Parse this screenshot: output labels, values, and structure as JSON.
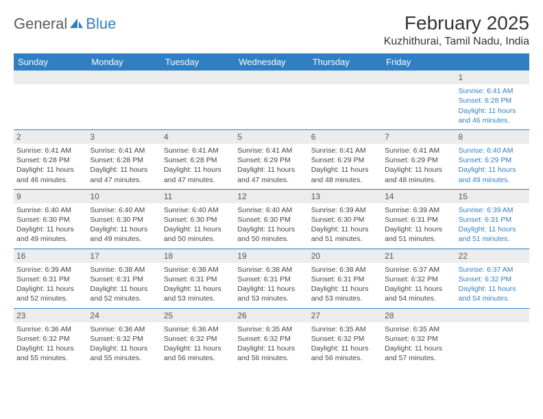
{
  "logo": {
    "text1": "General",
    "text2": "Blue"
  },
  "title": "February 2025",
  "location": "Kuzhithurai, Tamil Nadu, India",
  "colors": {
    "header_bg": "#2f7fc2",
    "header_text": "#ffffff",
    "daynum_bg": "#ececec",
    "border": "#2f7fc2",
    "body_text": "#444444",
    "saturday_text": "#2f7fc2",
    "background": "#ffffff"
  },
  "typography": {
    "title_fontsize": 28,
    "location_fontsize": 16,
    "dayheader_fontsize": 13,
    "cell_fontsize": 10.5,
    "daynum_fontsize": 12
  },
  "day_headers": [
    "Sunday",
    "Monday",
    "Tuesday",
    "Wednesday",
    "Thursday",
    "Friday",
    "Saturday"
  ],
  "weeks": [
    [
      {
        "n": "",
        "lines": []
      },
      {
        "n": "",
        "lines": []
      },
      {
        "n": "",
        "lines": []
      },
      {
        "n": "",
        "lines": []
      },
      {
        "n": "",
        "lines": []
      },
      {
        "n": "",
        "lines": []
      },
      {
        "n": "1",
        "lines": [
          "Sunrise: 6:41 AM",
          "Sunset: 6:28 PM",
          "Daylight: 11 hours",
          "and 46 minutes."
        ]
      }
    ],
    [
      {
        "n": "2",
        "lines": [
          "Sunrise: 6:41 AM",
          "Sunset: 6:28 PM",
          "Daylight: 11 hours",
          "and 46 minutes."
        ]
      },
      {
        "n": "3",
        "lines": [
          "Sunrise: 6:41 AM",
          "Sunset: 6:28 PM",
          "Daylight: 11 hours",
          "and 47 minutes."
        ]
      },
      {
        "n": "4",
        "lines": [
          "Sunrise: 6:41 AM",
          "Sunset: 6:28 PM",
          "Daylight: 11 hours",
          "and 47 minutes."
        ]
      },
      {
        "n": "5",
        "lines": [
          "Sunrise: 6:41 AM",
          "Sunset: 6:29 PM",
          "Daylight: 11 hours",
          "and 47 minutes."
        ]
      },
      {
        "n": "6",
        "lines": [
          "Sunrise: 6:41 AM",
          "Sunset: 6:29 PM",
          "Daylight: 11 hours",
          "and 48 minutes."
        ]
      },
      {
        "n": "7",
        "lines": [
          "Sunrise: 6:41 AM",
          "Sunset: 6:29 PM",
          "Daylight: 11 hours",
          "and 48 minutes."
        ]
      },
      {
        "n": "8",
        "lines": [
          "Sunrise: 6:40 AM",
          "Sunset: 6:29 PM",
          "Daylight: 11 hours",
          "and 49 minutes."
        ]
      }
    ],
    [
      {
        "n": "9",
        "lines": [
          "Sunrise: 6:40 AM",
          "Sunset: 6:30 PM",
          "Daylight: 11 hours",
          "and 49 minutes."
        ]
      },
      {
        "n": "10",
        "lines": [
          "Sunrise: 6:40 AM",
          "Sunset: 6:30 PM",
          "Daylight: 11 hours",
          "and 49 minutes."
        ]
      },
      {
        "n": "11",
        "lines": [
          "Sunrise: 6:40 AM",
          "Sunset: 6:30 PM",
          "Daylight: 11 hours",
          "and 50 minutes."
        ]
      },
      {
        "n": "12",
        "lines": [
          "Sunrise: 6:40 AM",
          "Sunset: 6:30 PM",
          "Daylight: 11 hours",
          "and 50 minutes."
        ]
      },
      {
        "n": "13",
        "lines": [
          "Sunrise: 6:39 AM",
          "Sunset: 6:30 PM",
          "Daylight: 11 hours",
          "and 51 minutes."
        ]
      },
      {
        "n": "14",
        "lines": [
          "Sunrise: 6:39 AM",
          "Sunset: 6:31 PM",
          "Daylight: 11 hours",
          "and 51 minutes."
        ]
      },
      {
        "n": "15",
        "lines": [
          "Sunrise: 6:39 AM",
          "Sunset: 6:31 PM",
          "Daylight: 11 hours",
          "and 51 minutes."
        ]
      }
    ],
    [
      {
        "n": "16",
        "lines": [
          "Sunrise: 6:39 AM",
          "Sunset: 6:31 PM",
          "Daylight: 11 hours",
          "and 52 minutes."
        ]
      },
      {
        "n": "17",
        "lines": [
          "Sunrise: 6:38 AM",
          "Sunset: 6:31 PM",
          "Daylight: 11 hours",
          "and 52 minutes."
        ]
      },
      {
        "n": "18",
        "lines": [
          "Sunrise: 6:38 AM",
          "Sunset: 6:31 PM",
          "Daylight: 11 hours",
          "and 53 minutes."
        ]
      },
      {
        "n": "19",
        "lines": [
          "Sunrise: 6:38 AM",
          "Sunset: 6:31 PM",
          "Daylight: 11 hours",
          "and 53 minutes."
        ]
      },
      {
        "n": "20",
        "lines": [
          "Sunrise: 6:38 AM",
          "Sunset: 6:31 PM",
          "Daylight: 11 hours",
          "and 53 minutes."
        ]
      },
      {
        "n": "21",
        "lines": [
          "Sunrise: 6:37 AM",
          "Sunset: 6:32 PM",
          "Daylight: 11 hours",
          "and 54 minutes."
        ]
      },
      {
        "n": "22",
        "lines": [
          "Sunrise: 6:37 AM",
          "Sunset: 6:32 PM",
          "Daylight: 11 hours",
          "and 54 minutes."
        ]
      }
    ],
    [
      {
        "n": "23",
        "lines": [
          "Sunrise: 6:36 AM",
          "Sunset: 6:32 PM",
          "Daylight: 11 hours",
          "and 55 minutes."
        ]
      },
      {
        "n": "24",
        "lines": [
          "Sunrise: 6:36 AM",
          "Sunset: 6:32 PM",
          "Daylight: 11 hours",
          "and 55 minutes."
        ]
      },
      {
        "n": "25",
        "lines": [
          "Sunrise: 6:36 AM",
          "Sunset: 6:32 PM",
          "Daylight: 11 hours",
          "and 56 minutes."
        ]
      },
      {
        "n": "26",
        "lines": [
          "Sunrise: 6:35 AM",
          "Sunset: 6:32 PM",
          "Daylight: 11 hours",
          "and 56 minutes."
        ]
      },
      {
        "n": "27",
        "lines": [
          "Sunrise: 6:35 AM",
          "Sunset: 6:32 PM",
          "Daylight: 11 hours",
          "and 56 minutes."
        ]
      },
      {
        "n": "28",
        "lines": [
          "Sunrise: 6:35 AM",
          "Sunset: 6:32 PM",
          "Daylight: 11 hours",
          "and 57 minutes."
        ]
      },
      {
        "n": "",
        "lines": []
      }
    ]
  ]
}
